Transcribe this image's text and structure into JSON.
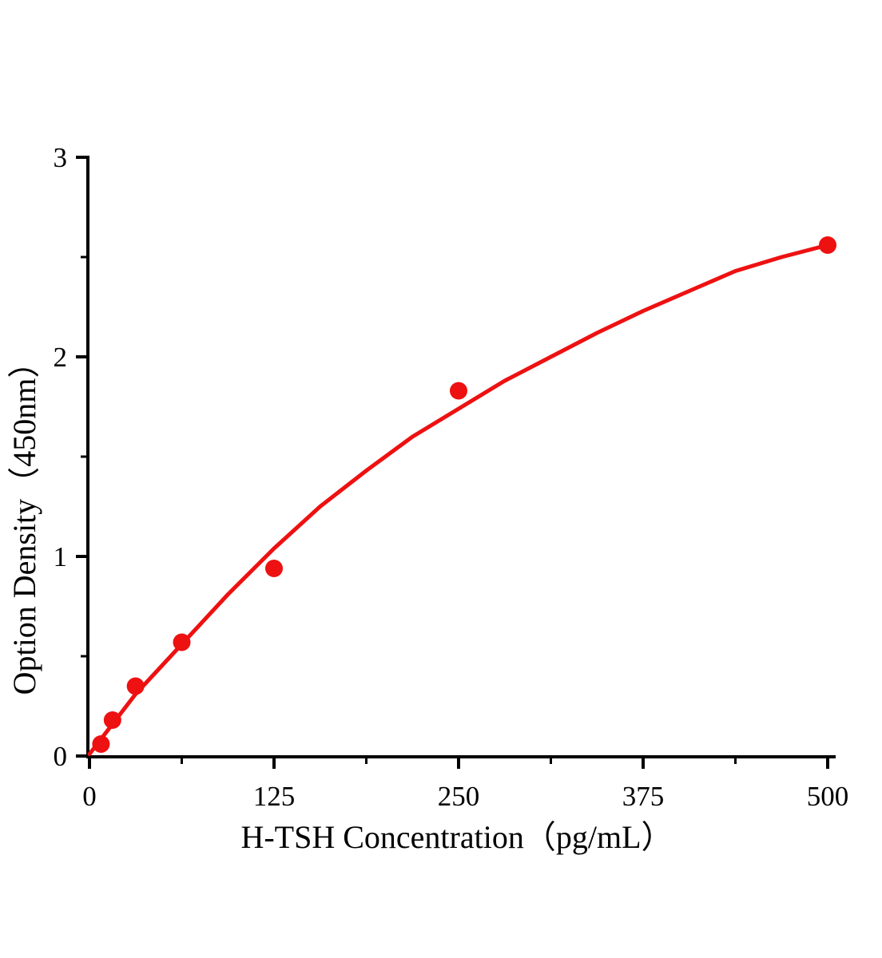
{
  "page": {
    "background_color": "#ffffff"
  },
  "chart_data": {
    "type": "scatter",
    "title": "",
    "xlabel": "H-TSH Concentration（pg/mL）",
    "ylabel": "Option Density（450nm）",
    "xlim": [
      0,
      500
    ],
    "ylim": [
      0,
      3
    ],
    "x_major_ticks": [
      0,
      125,
      250,
      375,
      500
    ],
    "x_major_tick_labels": [
      "0",
      "125",
      "250",
      "375",
      "500"
    ],
    "x_minor_ticks": [
      62.5,
      187.5,
      312.5,
      437.5
    ],
    "y_major_ticks": [
      0,
      1,
      2,
      3
    ],
    "y_major_tick_labels": [
      "0",
      "1",
      "2",
      "3"
    ],
    "y_minor_ticks": [
      0.5,
      1.5,
      2.5
    ],
    "grid": false,
    "legend": null,
    "axis_color": "#000000",
    "accent_color": "#ee1111",
    "series": [
      {
        "name": "standard-data-points",
        "type": "scatter",
        "marker": "filled-circle",
        "color": "#ee1111",
        "x": [
          7.8,
          15.6,
          31.2,
          62.5,
          125,
          250,
          500
        ],
        "y": [
          0.06,
          0.18,
          0.35,
          0.57,
          0.94,
          1.83,
          2.56
        ]
      },
      {
        "name": "fit-curve",
        "type": "line",
        "color": "#ee1111",
        "x": [
          0,
          15.6,
          31.2,
          62.5,
          93.8,
          125,
          156.2,
          187.5,
          218.8,
          250,
          281.2,
          312.5,
          343.8,
          375,
          406.2,
          437.5,
          468.8,
          500
        ],
        "y": [
          0.01,
          0.16,
          0.31,
          0.56,
          0.81,
          1.04,
          1.25,
          1.43,
          1.6,
          1.74,
          1.88,
          2.0,
          2.12,
          2.23,
          2.33,
          2.43,
          2.5,
          2.56
        ]
      }
    ]
  }
}
